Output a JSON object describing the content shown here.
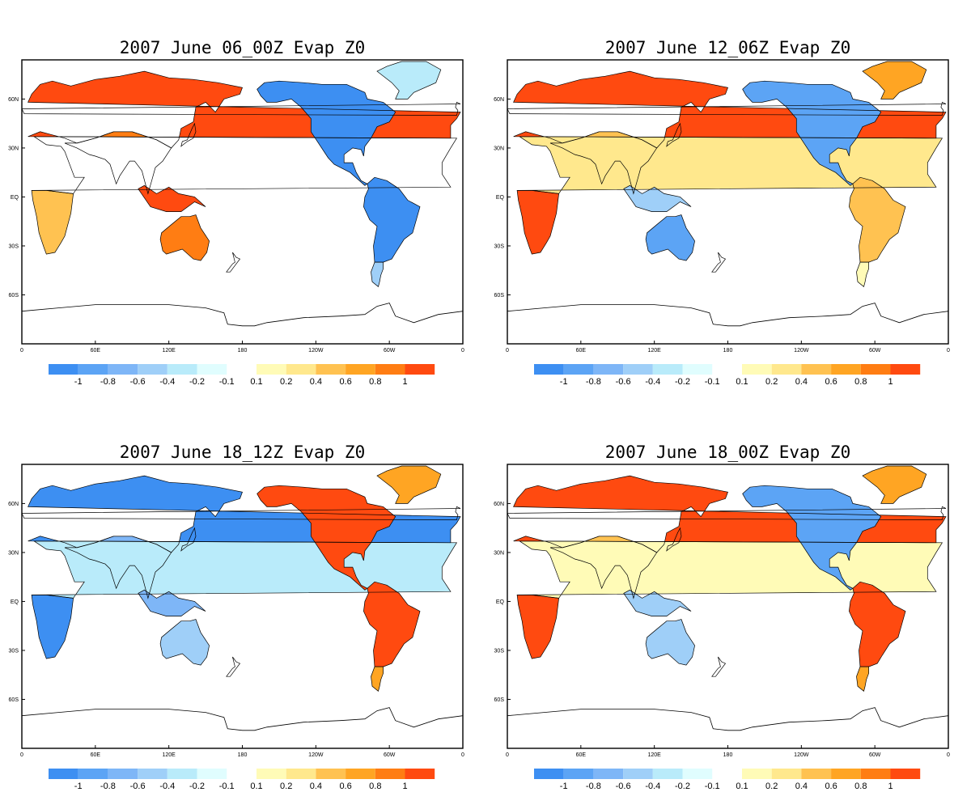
{
  "chart_data": [
    {
      "type": "heatmap",
      "title": "2007 June 06_00Z Evap Z0",
      "field_pattern": {
        "eurasia": 0.95,
        "south_asia": 0.8,
        "north_america": -0.9,
        "greenland": -0.15,
        "south_america": -0.9,
        "patagonia": -0.3,
        "africa_north": 0.0,
        "africa_south": 0.3,
        "australia": 0.8,
        "maritime": 0.9
      }
    },
    {
      "type": "heatmap",
      "title": "2007 June 12_06Z Evap Z0",
      "field_pattern": {
        "eurasia": 0.9,
        "south_asia": 0.3,
        "north_america": -0.7,
        "greenland": 0.5,
        "south_america": 0.4,
        "patagonia": 0.1,
        "africa_north": 0.15,
        "africa_south": 0.95,
        "australia": -0.7,
        "maritime": -0.3
      }
    },
    {
      "type": "heatmap",
      "title": "2007 June 18_12Z Evap Z0",
      "field_pattern": {
        "eurasia": -0.9,
        "south_asia": -0.6,
        "north_america": 0.95,
        "greenland": 0.5,
        "south_america": 0.95,
        "patagonia": 0.6,
        "africa_north": -0.2,
        "africa_south": -0.9,
        "australia": -0.3,
        "maritime": -0.5
      }
    },
    {
      "type": "heatmap",
      "title": "2007 June 18_00Z Evap Z0",
      "field_pattern": {
        "eurasia": 0.95,
        "south_asia": 0.3,
        "north_america": -0.85,
        "greenland": 0.5,
        "south_america": 0.95,
        "patagonia": 0.6,
        "africa_north": 0.1,
        "africa_south": 0.95,
        "australia": -0.3,
        "maritime": -0.4
      }
    }
  ],
  "axes": {
    "x_ticks": [
      "0",
      "60E",
      "120E",
      "180",
      "120W",
      "60W",
      "0"
    ],
    "y_ticks": [
      "60N",
      "30N",
      "EQ",
      "30S",
      "60S"
    ]
  },
  "colorbar": {
    "labels": [
      "-1",
      "-0.8",
      "-0.6",
      "-0.4",
      "-0.2",
      "-0.1",
      "0.1",
      "0.2",
      "0.4",
      "0.6",
      "0.8",
      "1"
    ],
    "negative_colors": [
      "#3d8ff2",
      "#5ca4f5",
      "#7eb6f7",
      "#9fcff8",
      "#b9ebfa",
      "#e0fdfe"
    ],
    "positive_colors": [
      "#fffbb7",
      "#ffe88d",
      "#ffc251",
      "#ffa523",
      "#ff7d13",
      "#ff4a10"
    ]
  }
}
